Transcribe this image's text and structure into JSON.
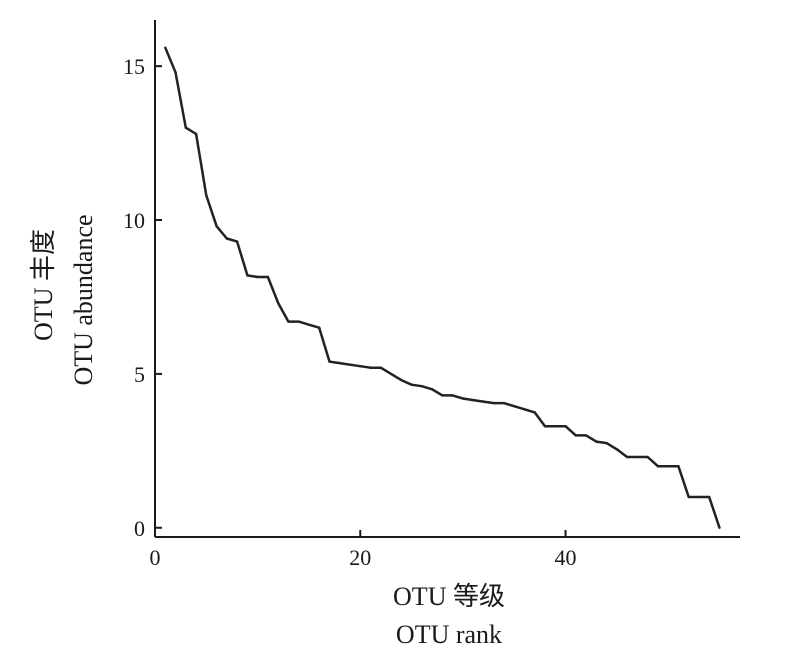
{
  "chart_data": {
    "type": "line",
    "title": "",
    "xlabel": [
      "OTU 等级",
      "OTU rank"
    ],
    "ylabel": [
      "OTU 丰度",
      "OTU abundance"
    ],
    "xlim": [
      0,
      57
    ],
    "ylim": [
      -0.3,
      16.5
    ],
    "xticks": [
      0,
      20,
      40
    ],
    "yticks": [
      0,
      5,
      10,
      15
    ],
    "xtick_labels": [
      "0",
      "20",
      "40"
    ],
    "ytick_labels": [
      "0",
      "5",
      "10",
      "15"
    ],
    "grid": false,
    "legend": "none",
    "line_color": "#222222",
    "series": [
      {
        "x": [
          1,
          2,
          3,
          4,
          5,
          6,
          7,
          8,
          9,
          10,
          11,
          12,
          13,
          14,
          15,
          16,
          17,
          18,
          19,
          20,
          21,
          22,
          23,
          24,
          25,
          26,
          27,
          28,
          29,
          30,
          31,
          32,
          33,
          34,
          35,
          36,
          37,
          38,
          39,
          40,
          41,
          42,
          43,
          44,
          45,
          46,
          47,
          48,
          49,
          50,
          51,
          52,
          53,
          54,
          55
        ],
        "y": [
          15.6,
          14.8,
          13.0,
          12.8,
          10.8,
          9.8,
          9.4,
          9.3,
          8.2,
          8.15,
          8.15,
          7.3,
          6.7,
          6.7,
          6.6,
          6.5,
          5.4,
          5.35,
          5.3,
          5.25,
          5.2,
          5.2,
          5.0,
          4.8,
          4.65,
          4.6,
          4.5,
          4.3,
          4.3,
          4.2,
          4.15,
          4.1,
          4.05,
          4.05,
          3.95,
          3.85,
          3.75,
          3.3,
          3.3,
          3.3,
          3.0,
          3.0,
          2.8,
          2.75,
          2.55,
          2.3,
          2.3,
          2.3,
          2.0,
          2.0,
          2.0,
          1.0,
          1.0,
          1.0,
          0.0
        ]
      }
    ]
  }
}
